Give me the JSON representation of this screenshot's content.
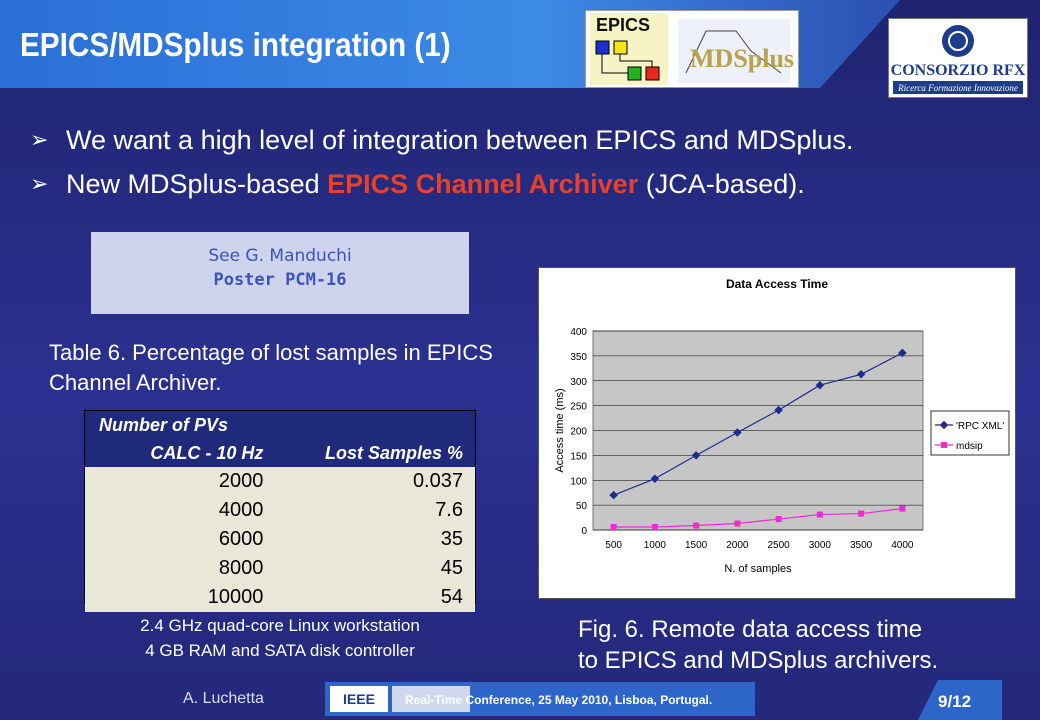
{
  "title": "EPICS/MDSplus integration (1)",
  "logos": {
    "epics": "EPICS",
    "mdsplus": "MDSplus",
    "rfx": "CONSORZIO RFX",
    "rfx_sub": "Ricerca Formazione Innovazione"
  },
  "bullets": [
    {
      "pre": "We want a high level of integration between EPICS and MDSplus.",
      "hl": "",
      "post": ""
    },
    {
      "pre": "New MDSplus-based ",
      "hl": "EPICS Channel Archiver",
      "post": " (JCA-based)."
    }
  ],
  "see": {
    "line1": "See G. Manduchi",
    "line2": "Poster PCM-16"
  },
  "table_caption": "Table 6.  Percentage of lost samples in EPICS Channel Archiver.",
  "table": {
    "head1": "Number of PVs",
    "head2a": "CALC - 10 Hz",
    "head2b": "Lost Samples %",
    "rows": [
      [
        "2000",
        "0.037"
      ],
      [
        "4000",
        "7.6"
      ],
      [
        "6000",
        "35"
      ],
      [
        "8000",
        "45"
      ],
      [
        "10000",
        "54"
      ]
    ]
  },
  "table_foot1": "2.4 GHz quad-core Linux workstation",
  "table_foot2": "4 GB RAM and SATA disk controller",
  "chart_data": {
    "type": "line",
    "title": "Data Access Time",
    "xlabel": "N. of samples",
    "ylabel": "Access time (ms)",
    "x": [
      500,
      1000,
      1500,
      2000,
      2500,
      3000,
      3500,
      4000
    ],
    "ylim": [
      0,
      400
    ],
    "yticks": [
      0,
      50,
      100,
      150,
      200,
      250,
      300,
      350,
      400
    ],
    "series": [
      {
        "name": "'RPC XML'",
        "color": "#1f2a8a",
        "values": [
          70,
          103,
          150,
          196,
          241,
          291,
          313,
          356
        ]
      },
      {
        "name": "mdsip",
        "color": "#ee2bd2",
        "values": [
          6,
          6,
          9,
          13,
          22,
          31,
          33,
          43
        ]
      }
    ],
    "legend": "right",
    "grid": true
  },
  "fig_caption1": "Fig. 6.  Remote data access time",
  "fig_caption2": "to EPICS and MDSplus archivers.",
  "footer": {
    "author": "A. Luchetta",
    "conference": "Real-Time Conference, 25 May 2010, Lisboa, Portugal.",
    "ieee": "IEEE",
    "page": "9/12"
  }
}
